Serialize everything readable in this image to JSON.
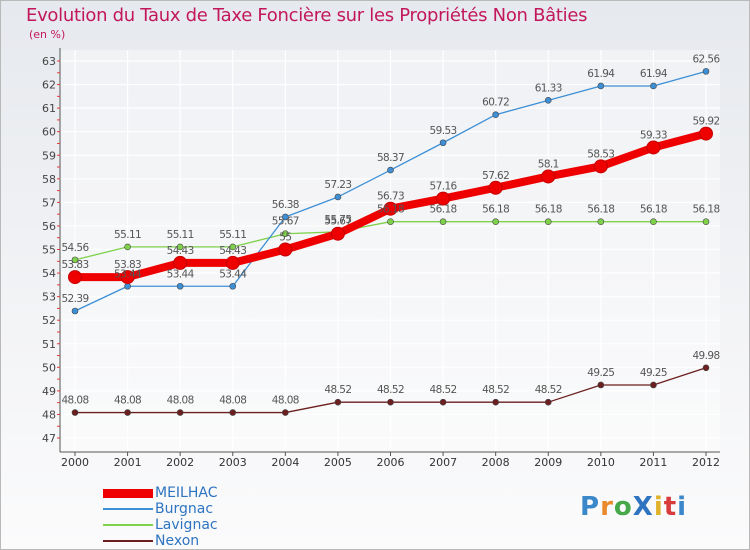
{
  "title": "Evolution du Taux de Taxe Foncière sur les Propriétés Non Bâties",
  "unit": "(en %)",
  "logo": {
    "text": "ProXiti",
    "colors": [
      "#3a87c9",
      "#e98a2c",
      "#47a84a",
      "#2f74c0",
      "#e0b22a",
      "#d83b3b",
      "#3a87c9"
    ]
  },
  "chart_data": {
    "type": "line",
    "title": "Evolution du Taux de Taxe Foncière sur les Propriétés Non Bâties",
    "ylabel": "(en %)",
    "xlabel": "",
    "x": [
      "2000",
      "2001",
      "2002",
      "2003",
      "2004",
      "2005",
      "2006",
      "2007",
      "2008",
      "2009",
      "2010",
      "2011",
      "2012"
    ],
    "ylim": [
      47,
      63
    ],
    "yticks": [
      47,
      48,
      49,
      50,
      51,
      52,
      53,
      54,
      55,
      56,
      57,
      58,
      59,
      60,
      61,
      62,
      63
    ],
    "grid": true,
    "legend": "bottom-left",
    "series": [
      {
        "name": "MEILHAC",
        "color": "#ee0000",
        "values": [
          53.83,
          53.83,
          54.43,
          54.43,
          55,
          55.67,
          56.73,
          57.16,
          57.62,
          58.1,
          58.53,
          59.33,
          59.92
        ],
        "labels": [
          "53.83",
          "53.83",
          "54.43",
          "54.43",
          "55",
          "55.67",
          "56.73",
          "57.16",
          "57.62",
          "58.1",
          "58.53",
          "59.33",
          "59.92"
        ]
      },
      {
        "name": "Burgnac",
        "color": "#3d8fd6",
        "values": [
          52.39,
          53.44,
          53.44,
          53.44,
          56.38,
          57.23,
          58.37,
          59.53,
          60.72,
          61.33,
          61.94,
          61.94,
          62.56
        ],
        "labels": [
          "52.39",
          "53.44",
          "53.44",
          "53.44",
          "56.38",
          "57.23",
          "58.37",
          "59.53",
          "60.72",
          "61.33",
          "61.94",
          "61.94",
          "62.56"
        ]
      },
      {
        "name": "Lavignac",
        "color": "#7fd14b",
        "values": [
          54.56,
          55.11,
          55.11,
          55.11,
          55.67,
          55.75,
          56.18,
          56.18,
          56.18,
          56.18,
          56.18,
          56.18,
          56.18
        ],
        "labels": [
          "54.56",
          "55.11",
          "55.11",
          "55.11",
          "55.67",
          "55.75",
          "56.18",
          "56.18",
          "56.18",
          "56.18",
          "56.18",
          "56.18",
          "56.18"
        ]
      },
      {
        "name": "Nexon",
        "color": "#6b1f1f",
        "values": [
          48.08,
          48.08,
          48.08,
          48.08,
          48.08,
          48.52,
          48.52,
          48.52,
          48.52,
          48.52,
          49.25,
          49.25,
          49.98
        ],
        "labels": [
          "48.08",
          "48.08",
          "48.08",
          "48.08",
          "48.08",
          "48.52",
          "48.52",
          "48.52",
          "48.52",
          "48.52",
          "49.25",
          "49.25",
          "49.98"
        ]
      }
    ]
  }
}
